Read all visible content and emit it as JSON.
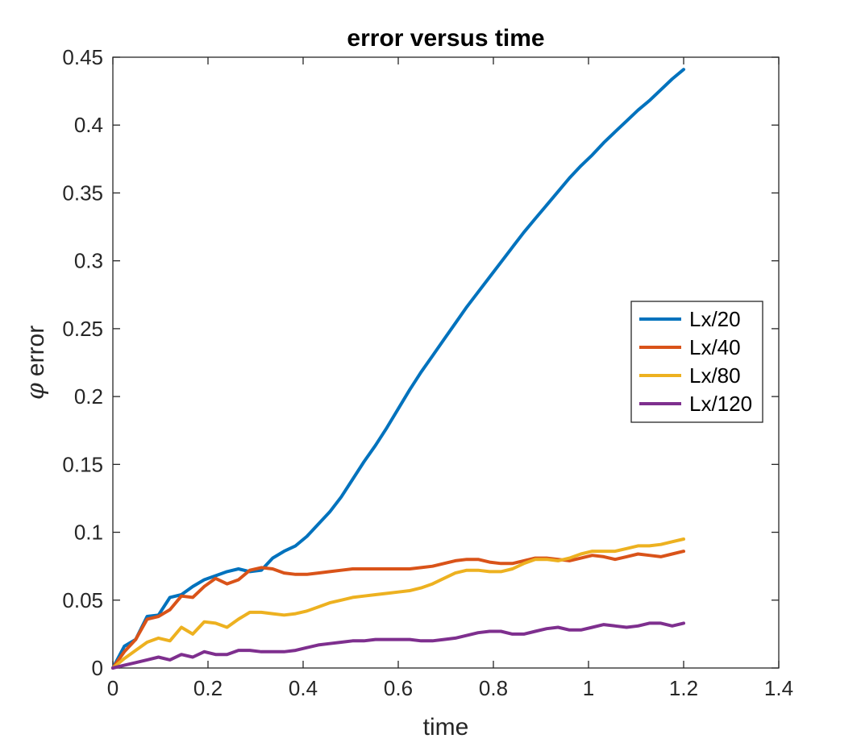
{
  "chart_data": {
    "type": "line",
    "title": "error versus time",
    "xlabel": "time",
    "ylabel_symbol": "φ",
    "ylabel_text": "error",
    "xlim": [
      0,
      1.4
    ],
    "ylim": [
      0,
      0.45
    ],
    "xticks": [
      0,
      0.2,
      0.4,
      0.6,
      0.8,
      1,
      1.2,
      1.4
    ],
    "xtick_labels": [
      "0",
      "0.2",
      "0.4",
      "0.6",
      "0.8",
      "1",
      "1.2",
      "1.4"
    ],
    "yticks": [
      0,
      0.05,
      0.1,
      0.15,
      0.2,
      0.25,
      0.3,
      0.35,
      0.4,
      0.45
    ],
    "ytick_labels": [
      "0",
      "0.05",
      "0.1",
      "0.15",
      "0.2",
      "0.25",
      "0.3",
      "0.35",
      "0.4",
      "0.45"
    ],
    "grid": false,
    "legend_position": "right",
    "x": [
      0,
      0.024,
      0.048,
      0.072,
      0.096,
      0.12,
      0.144,
      0.168,
      0.192,
      0.216,
      0.24,
      0.264,
      0.288,
      0.312,
      0.336,
      0.36,
      0.384,
      0.408,
      0.432,
      0.456,
      0.48,
      0.504,
      0.528,
      0.552,
      0.576,
      0.6,
      0.624,
      0.648,
      0.672,
      0.696,
      0.72,
      0.744,
      0.768,
      0.792,
      0.816,
      0.84,
      0.864,
      0.888,
      0.912,
      0.936,
      0.96,
      0.984,
      1.008,
      1.032,
      1.056,
      1.08,
      1.104,
      1.128,
      1.152,
      1.176,
      1.2
    ],
    "series": [
      {
        "name": "Lx/20",
        "color": "#0072BD",
        "values": [
          0,
          0.016,
          0.021,
          0.038,
          0.039,
          0.052,
          0.054,
          0.06,
          0.065,
          0.068,
          0.071,
          0.073,
          0.071,
          0.072,
          0.081,
          0.086,
          0.09,
          0.097,
          0.106,
          0.115,
          0.126,
          0.139,
          0.152,
          0.164,
          0.177,
          0.191,
          0.205,
          0.218,
          0.23,
          0.242,
          0.254,
          0.266,
          0.277,
          0.288,
          0.299,
          0.31,
          0.321,
          0.331,
          0.341,
          0.351,
          0.361,
          0.37,
          0.378,
          0.387,
          0.395,
          0.403,
          0.411,
          0.418,
          0.426,
          0.434,
          0.441
        ]
      },
      {
        "name": "Lx/40",
        "color": "#D95319",
        "values": [
          0,
          0.012,
          0.021,
          0.036,
          0.038,
          0.043,
          0.053,
          0.052,
          0.06,
          0.066,
          0.062,
          0.065,
          0.072,
          0.074,
          0.073,
          0.07,
          0.069,
          0.069,
          0.07,
          0.071,
          0.072,
          0.073,
          0.073,
          0.073,
          0.073,
          0.073,
          0.073,
          0.074,
          0.075,
          0.077,
          0.079,
          0.08,
          0.08,
          0.078,
          0.077,
          0.077,
          0.079,
          0.081,
          0.081,
          0.08,
          0.079,
          0.081,
          0.083,
          0.082,
          0.08,
          0.082,
          0.084,
          0.083,
          0.082,
          0.084,
          0.086
        ]
      },
      {
        "name": "Lx/80",
        "color": "#EDB120",
        "values": [
          0,
          0.007,
          0.013,
          0.019,
          0.022,
          0.02,
          0.03,
          0.025,
          0.034,
          0.033,
          0.03,
          0.036,
          0.041,
          0.041,
          0.04,
          0.039,
          0.04,
          0.042,
          0.045,
          0.048,
          0.05,
          0.052,
          0.053,
          0.054,
          0.055,
          0.056,
          0.057,
          0.059,
          0.062,
          0.066,
          0.07,
          0.072,
          0.072,
          0.071,
          0.071,
          0.073,
          0.077,
          0.08,
          0.08,
          0.079,
          0.081,
          0.084,
          0.086,
          0.086,
          0.086,
          0.088,
          0.09,
          0.09,
          0.091,
          0.093,
          0.095
        ]
      },
      {
        "name": "Lx/120",
        "color": "#7E2F8E",
        "values": [
          0,
          0.002,
          0.004,
          0.006,
          0.008,
          0.006,
          0.01,
          0.008,
          0.012,
          0.01,
          0.01,
          0.013,
          0.013,
          0.012,
          0.012,
          0.012,
          0.013,
          0.015,
          0.017,
          0.018,
          0.019,
          0.02,
          0.02,
          0.021,
          0.021,
          0.021,
          0.021,
          0.02,
          0.02,
          0.021,
          0.022,
          0.024,
          0.026,
          0.027,
          0.027,
          0.025,
          0.025,
          0.027,
          0.029,
          0.03,
          0.028,
          0.028,
          0.03,
          0.032,
          0.031,
          0.03,
          0.031,
          0.033,
          0.033,
          0.031,
          0.033
        ]
      }
    ]
  }
}
